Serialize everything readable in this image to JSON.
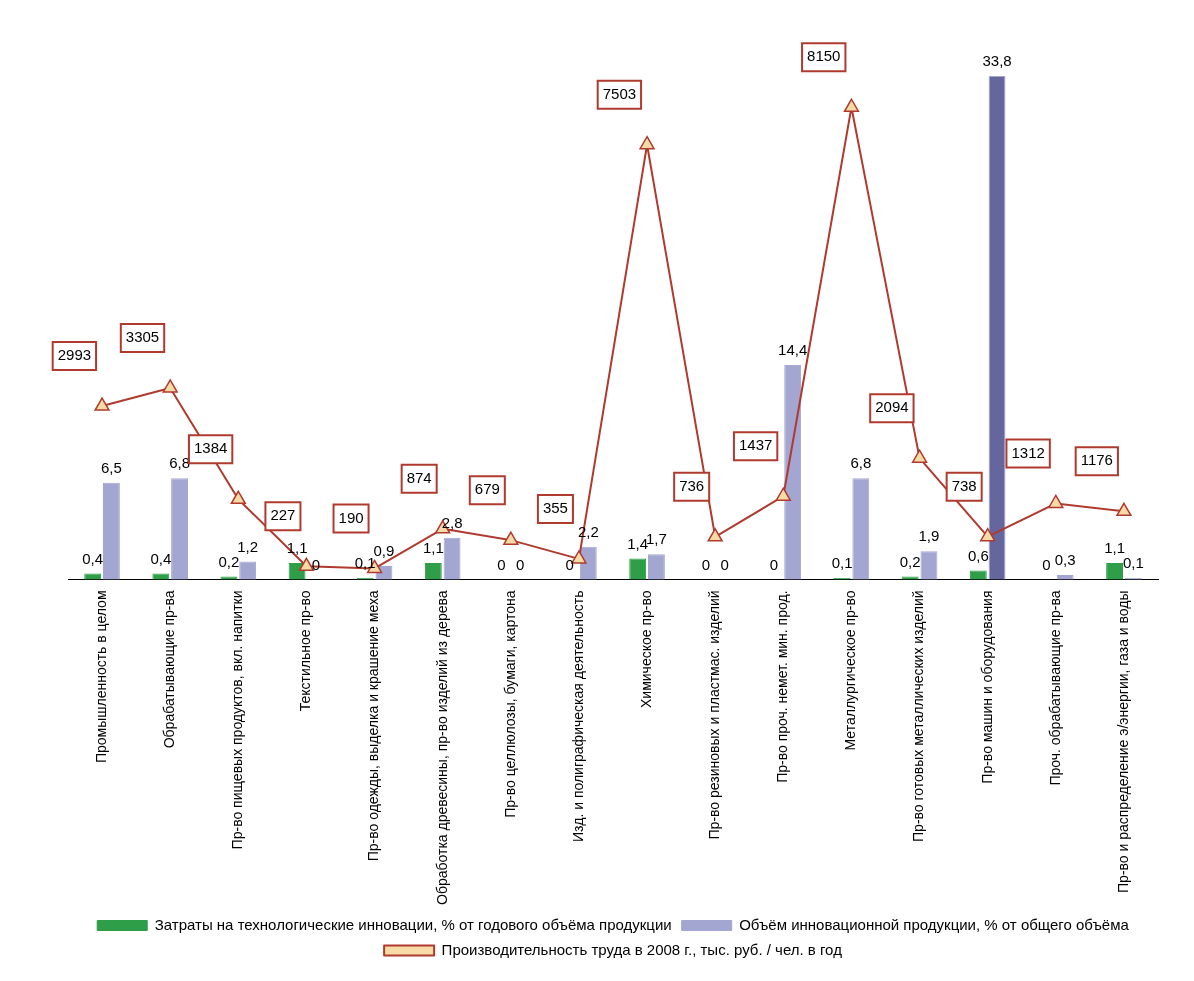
{
  "chart_data": {
    "type": "bar",
    "categories": [
      "Промышленность в целом",
      "Обрабатывающие пр-ва",
      "Пр-во пищевых продуктов, вкл. напитки",
      "Текстильное пр-во",
      "Пр-во одежды, выделка и крашение меха",
      "Обработка древесины, пр-во изделий из дерева",
      "Пр-во целлюлозы, бумаги, картона",
      "Изд. и полиграфическая деятельность",
      "Химическое пр-во",
      "Пр-во резиновых и пластмас. изделий",
      "Пр-во проч. немет. мин. прод.",
      "Металлургическое пр-во",
      "Пр-во готовых металлических изделий",
      "Пр-во машин и оборудования",
      "Проч. обрабатывающие пр-ва",
      "Пр-во и распределение э/энергии, газа и воды"
    ],
    "series": [
      {
        "name": "Затраты на технологические инновации, % от годового объёма продукции",
        "color": "#2e9e48",
        "values": [
          0.4,
          0.4,
          0.2,
          1.1,
          0.1,
          1.1,
          0,
          0,
          1.4,
          0,
          0,
          0.1,
          0.2,
          0.6,
          0,
          1.1
        ],
        "value_labels": [
          "0,4",
          "0,4",
          "0,2",
          "1,1",
          "0,1",
          "1,1",
          "0",
          "0",
          "1,4",
          "0",
          "0",
          "0,1",
          "0,2",
          "0,6",
          "0",
          "1,1"
        ]
      },
      {
        "name": "Объём инновационной продукции, % от общего объёма",
        "color": "#a4a6d2",
        "colors": [
          "#a4a6d2",
          "#a4a6d2",
          "#a4a6d2",
          "#a4a6d2",
          "#a4a6d2",
          "#a4a6d2",
          "#a4a6d2",
          "#a4a6d2",
          "#a4a6d2",
          "#a4a6d2",
          "#a4a6d2",
          "#a4a6d2",
          "#a4a6d2",
          "#65669e",
          "#a4a6d2",
          "#a4a6d2"
        ],
        "values": [
          6.5,
          6.8,
          1.2,
          0,
          0.9,
          2.8,
          0,
          2.2,
          1.7,
          0,
          14.4,
          6.8,
          1.9,
          33.8,
          0.3,
          0.1
        ],
        "value_labels": [
          "6,5",
          "6,8",
          "1,2",
          "0",
          "0,9",
          "2,8",
          "0",
          "2,2",
          "1,7",
          "0",
          "14,4",
          "6,8",
          "1,9",
          "33,8",
          "0,3",
          "0,1"
        ]
      },
      {
        "name": "Производительность труда в 2008 г., тыс. руб. / чел. в год",
        "type": "line",
        "axis": "y2",
        "color": "#b03a2e",
        "marker": "triangle",
        "values": [
          2993,
          3305,
          1384,
          227,
          190,
          874,
          679,
          355,
          7503,
          736,
          1437,
          8150,
          2094,
          738,
          1312,
          1176
        ],
        "value_labels": [
          "2993",
          "3305",
          "1384",
          "227",
          "190",
          "874",
          "679",
          "355",
          "7503",
          "736",
          "1437",
          "8150",
          "2094",
          "738",
          "1312",
          "1176"
        ]
      }
    ],
    "legend": "bottom",
    "grid": false
  }
}
